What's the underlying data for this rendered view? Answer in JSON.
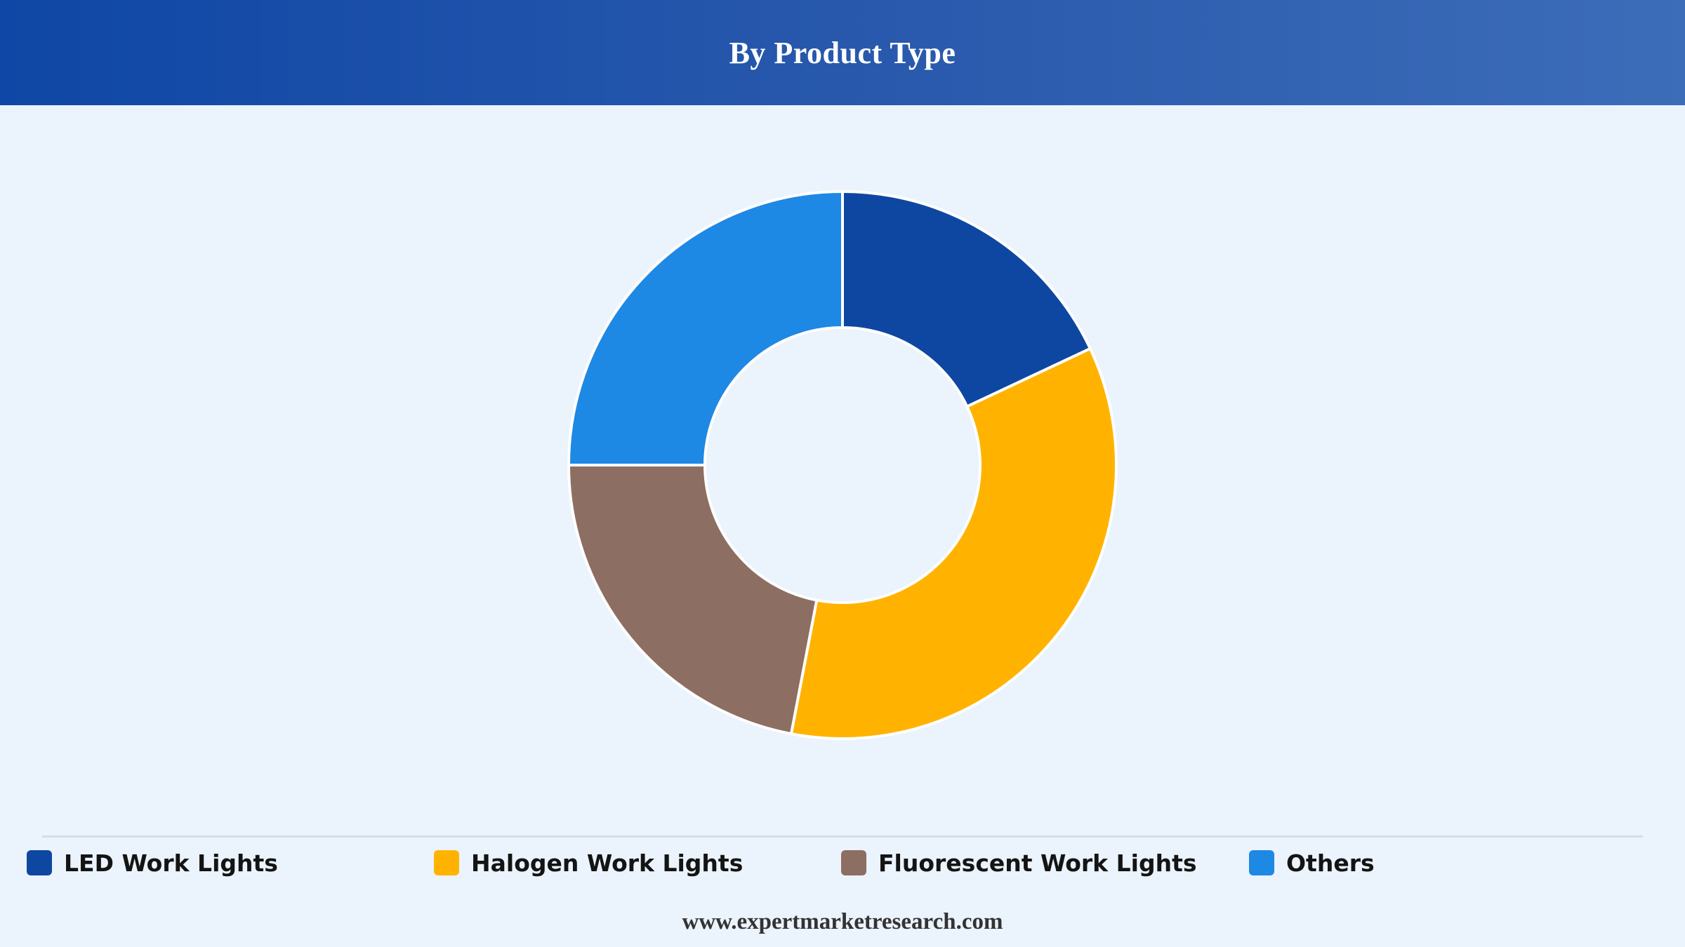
{
  "header": {
    "title": "By Product Type"
  },
  "chart_data": {
    "type": "pie",
    "variant": "donut",
    "title": "By Product Type",
    "categories": [
      "LED Work Lights",
      "Halogen Work Lights",
      "Fluorescent Work Lights",
      "Others"
    ],
    "values": [
      18,
      35,
      22,
      25
    ],
    "unit": "%",
    "colors": [
      "#0d47a1",
      "#ffb300",
      "#8d6e63",
      "#1e88e5"
    ],
    "start_angle_deg": 0,
    "direction": "clockwise",
    "slice_border_color": "#ffffff",
    "legend_placement": "bottom"
  },
  "legend": {
    "items": [
      {
        "label": "LED Work Lights",
        "color": "#0d47a1"
      },
      {
        "label": "Halogen Work Lights",
        "color": "#ffb300"
      },
      {
        "label": "Fluorescent Work Lights",
        "color": "#8d6e63"
      },
      {
        "label": "Others",
        "color": "#1e88e5"
      }
    ]
  },
  "footer": {
    "source": "www.expertmarketresearch.com"
  },
  "colors": {
    "header_gradient_start": "#0f47a6",
    "header_gradient_end": "#3c6db9",
    "background": "#ebf3fc"
  }
}
